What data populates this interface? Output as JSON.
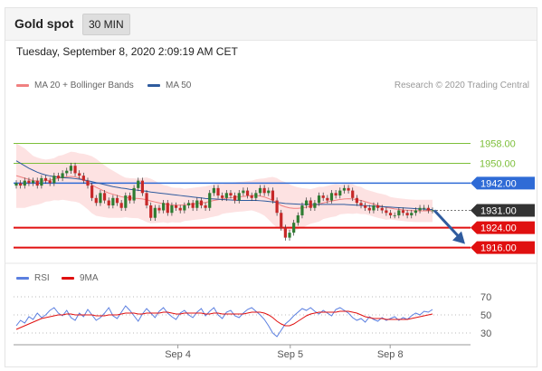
{
  "header": {
    "title": "Gold spot",
    "timeframe": "30 MIN"
  },
  "timestamp": "Tuesday, September 8, 2020 2:09:19 AM CET",
  "legend_main": [
    {
      "label": "MA 20 + Bollinger Bands",
      "color": "#f08080"
    },
    {
      "label": "MA 50",
      "color": "#2f5b9e"
    }
  ],
  "credit": "Research © 2020 Trading Central",
  "legend_rsi": [
    {
      "label": "RSI",
      "color": "#5b7fe0"
    },
    {
      "label": "9MA",
      "color": "#e01010"
    }
  ],
  "colors": {
    "support": "#e01010",
    "resistance": "#2f6bd6",
    "target": "#7dbf3a",
    "current": "#333333",
    "arrow": "#2f5b9e",
    "band": "#fde2e2",
    "bull": "#2e7d32",
    "bear": "#c62828"
  },
  "chart_data": [
    {
      "type": "candlestick",
      "title": "Gold spot",
      "ylim": [
        1910,
        1975
      ],
      "x_labels": [
        {
          "label": "Sep 4",
          "pos": 0.36
        },
        {
          "label": "Sep 5",
          "pos": 0.63
        },
        {
          "label": "Sep 8",
          "pos": 0.87
        }
      ],
      "levels": [
        {
          "value": 1958.0,
          "label": "1958.00",
          "kind": "target"
        },
        {
          "value": 1950.0,
          "label": "1950.00",
          "kind": "target"
        },
        {
          "value": 1942.0,
          "label": "1942.00",
          "kind": "resistance"
        },
        {
          "value": 1931.0,
          "label": "1931.00",
          "kind": "current"
        },
        {
          "value": 1924.0,
          "label": "1924.00",
          "kind": "support"
        },
        {
          "value": 1916.0,
          "label": "1916.00",
          "kind": "support"
        }
      ],
      "close_series": [
        1942,
        1941,
        1943,
        1942,
        1943,
        1941,
        1944,
        1943,
        1942,
        1945,
        1944,
        1946,
        1947,
        1949,
        1946,
        1945,
        1943,
        1941,
        1936,
        1934,
        1938,
        1935,
        1933,
        1936,
        1934,
        1932,
        1937,
        1935,
        1940,
        1943,
        1938,
        1933,
        1928,
        1932,
        1931,
        1934,
        1930,
        1933,
        1932,
        1931,
        1933,
        1934,
        1932,
        1935,
        1933,
        1932,
        1938,
        1940,
        1937,
        1936,
        1938,
        1937,
        1935,
        1938,
        1939,
        1937,
        1936,
        1938,
        1940,
        1938,
        1939,
        1935,
        1930,
        1924,
        1920,
        1922,
        1926,
        1929,
        1933,
        1935,
        1932,
        1934,
        1937,
        1936,
        1935,
        1938,
        1937,
        1939,
        1940,
        1939,
        1936,
        1934,
        1933,
        1932,
        1931,
        1933,
        1932,
        1931,
        1930,
        1929,
        1929,
        1931,
        1930,
        1929,
        1930,
        1931,
        1932,
        1932,
        1931,
        1931
      ],
      "ma20": [
        1945,
        1944.5,
        1944,
        1943.5,
        1943,
        1942.8,
        1942.8,
        1943,
        1943.2,
        1943.6,
        1944,
        1944.3,
        1944.5,
        1944.7,
        1944.5,
        1944,
        1943.3,
        1942.4,
        1941.3,
        1940.3,
        1939.5,
        1938.7,
        1938,
        1937.5,
        1937,
        1936.5,
        1936.2,
        1936,
        1935.9,
        1935.8,
        1935.6,
        1935.3,
        1934.8,
        1934.4,
        1934,
        1933.7,
        1933.4,
        1933.2,
        1933.1,
        1933.1,
        1933.2,
        1933.4,
        1933.6,
        1933.8,
        1934,
        1934.2,
        1934.6,
        1935,
        1935.3,
        1935.6,
        1935.9,
        1936.1,
        1936.3,
        1936.5,
        1936.6,
        1936.8,
        1937,
        1937,
        1936.8,
        1936.4,
        1935.8,
        1935,
        1934,
        1933,
        1932.4,
        1932,
        1931.8,
        1931.8,
        1932,
        1932.3,
        1932.6,
        1933,
        1933.5,
        1934,
        1934.4,
        1934.8,
        1935.1,
        1935.4,
        1935.6,
        1935.7,
        1935.6,
        1935.3,
        1935,
        1934.5,
        1934,
        1933.5,
        1933,
        1932.6,
        1932.2,
        1931.9,
        1931.6,
        1931.4,
        1931.2,
        1931,
        1930.9,
        1930.8,
        1930.8,
        1930.8,
        1930.8,
        1930.8
      ],
      "band_width": [
        13,
        12.5,
        12,
        11,
        10,
        9.5,
        9,
        8.5,
        8.5,
        8.5,
        9,
        9,
        9.5,
        10,
        10,
        10,
        10.5,
        11,
        11.5,
        11.5,
        11,
        10.5,
        10,
        9.5,
        9,
        8.5,
        8,
        8,
        8,
        8,
        8.5,
        9,
        9,
        8.5,
        8,
        7.5,
        7.5,
        7,
        7,
        7,
        6.5,
        6.5,
        6.5,
        6.5,
        6.5,
        6.5,
        6.5,
        6.5,
        6.5,
        6,
        6,
        6,
        6,
        6,
        6,
        6,
        6,
        6.5,
        7,
        7.5,
        8.5,
        9.5,
        10,
        10,
        10,
        9.5,
        9,
        8.5,
        8,
        7.5,
        7,
        7,
        7,
        6.5,
        6.5,
        6.5,
        6.5,
        6,
        6,
        6,
        6,
        5.5,
        5.5,
        5,
        5,
        5,
        5,
        5,
        5,
        4.5,
        4.5,
        4.5,
        4.5,
        4.5,
        4.5,
        4.5,
        4.5,
        4.5,
        4.5,
        4.5
      ],
      "ma50": [
        1951,
        1950,
        1949,
        1948,
        1947.2,
        1946.4,
        1945.8,
        1945.3,
        1944.9,
        1944.6,
        1944.4,
        1944.2,
        1944.1,
        1944,
        1943.8,
        1943.6,
        1943.3,
        1943,
        1942.6,
        1942.2,
        1941.8,
        1941.4,
        1941,
        1940.6,
        1940.3,
        1940,
        1939.8,
        1939.5,
        1939.3,
        1939.1,
        1938.9,
        1938.7,
        1938.4,
        1938.2,
        1938,
        1937.8,
        1937.6,
        1937.4,
        1937.2,
        1937,
        1936.8,
        1936.6,
        1936.4,
        1936.2,
        1936,
        1935.8,
        1935.7,
        1935.6,
        1935.5,
        1935.4,
        1935.3,
        1935.2,
        1935.1,
        1935,
        1935,
        1935,
        1935,
        1935,
        1934.9,
        1934.8,
        1934.6,
        1934.4,
        1934.2,
        1934,
        1933.8,
        1933.7,
        1933.6,
        1933.5,
        1933.4,
        1933.4,
        1933.4,
        1933.4,
        1933.4,
        1933.4,
        1933.4,
        1933.4,
        1933.4,
        1933.4,
        1933.4,
        1933.3,
        1933.2,
        1933.1,
        1933,
        1932.9,
        1932.8,
        1932.7,
        1932.6,
        1932.5,
        1932.4,
        1932.3,
        1932.2,
        1932.1,
        1932,
        1931.9,
        1931.8,
        1931.7,
        1931.6,
        1931.5,
        1931.4,
        1931.3
      ],
      "projection": {
        "from": 1931,
        "to": 1916
      }
    },
    {
      "type": "line",
      "title": "RSI",
      "ylim": [
        20,
        80
      ],
      "y_ticks": [
        30,
        50,
        70
      ],
      "x_labels": [
        {
          "label": "Sep 4",
          "pos": 0.36
        },
        {
          "label": "Sep 5",
          "pos": 0.63
        },
        {
          "label": "Sep 8",
          "pos": 0.87
        }
      ],
      "series": [
        {
          "name": "RSI",
          "values": [
            38,
            44,
            41,
            48,
            45,
            52,
            47,
            50,
            55,
            58,
            52,
            49,
            55,
            47,
            44,
            52,
            48,
            56,
            50,
            44,
            47,
            52,
            58,
            49,
            46,
            53,
            60,
            55,
            49,
            43,
            51,
            57,
            52,
            47,
            54,
            58,
            52,
            48,
            45,
            52,
            55,
            50,
            47,
            53,
            57,
            49,
            54,
            58,
            50,
            46,
            53,
            55,
            49,
            47,
            52,
            56,
            58,
            54,
            50,
            45,
            38,
            30,
            26,
            33,
            40,
            44,
            49,
            53,
            57,
            55,
            58,
            54,
            51,
            55,
            52,
            49,
            56,
            58,
            55,
            52,
            47,
            44,
            46,
            42,
            48,
            45,
            43,
            47,
            44,
            46,
            48,
            44,
            47,
            45,
            49,
            52,
            50,
            54,
            53,
            56
          ]
        },
        {
          "name": "9MA",
          "values": [
            34,
            36,
            38,
            40,
            42,
            44,
            46,
            47,
            48,
            49,
            50,
            50,
            51,
            51,
            50,
            50,
            50,
            50,
            50,
            49,
            49,
            49,
            50,
            50,
            50,
            51,
            52,
            52,
            52,
            51,
            51,
            52,
            52,
            52,
            52,
            53,
            53,
            52,
            51,
            51,
            52,
            52,
            52,
            52,
            52,
            51,
            51,
            52,
            52,
            51,
            51,
            51,
            51,
            51,
            51,
            52,
            53,
            53,
            53,
            52,
            50,
            47,
            43,
            40,
            38,
            38,
            40,
            43,
            46,
            49,
            51,
            52,
            53,
            53,
            53,
            53,
            53,
            54,
            54,
            54,
            53,
            52,
            50,
            48,
            47,
            46,
            46,
            46,
            45,
            45,
            45,
            45,
            45,
            45,
            46,
            47,
            48,
            49,
            50,
            51
          ]
        }
      ]
    }
  ]
}
